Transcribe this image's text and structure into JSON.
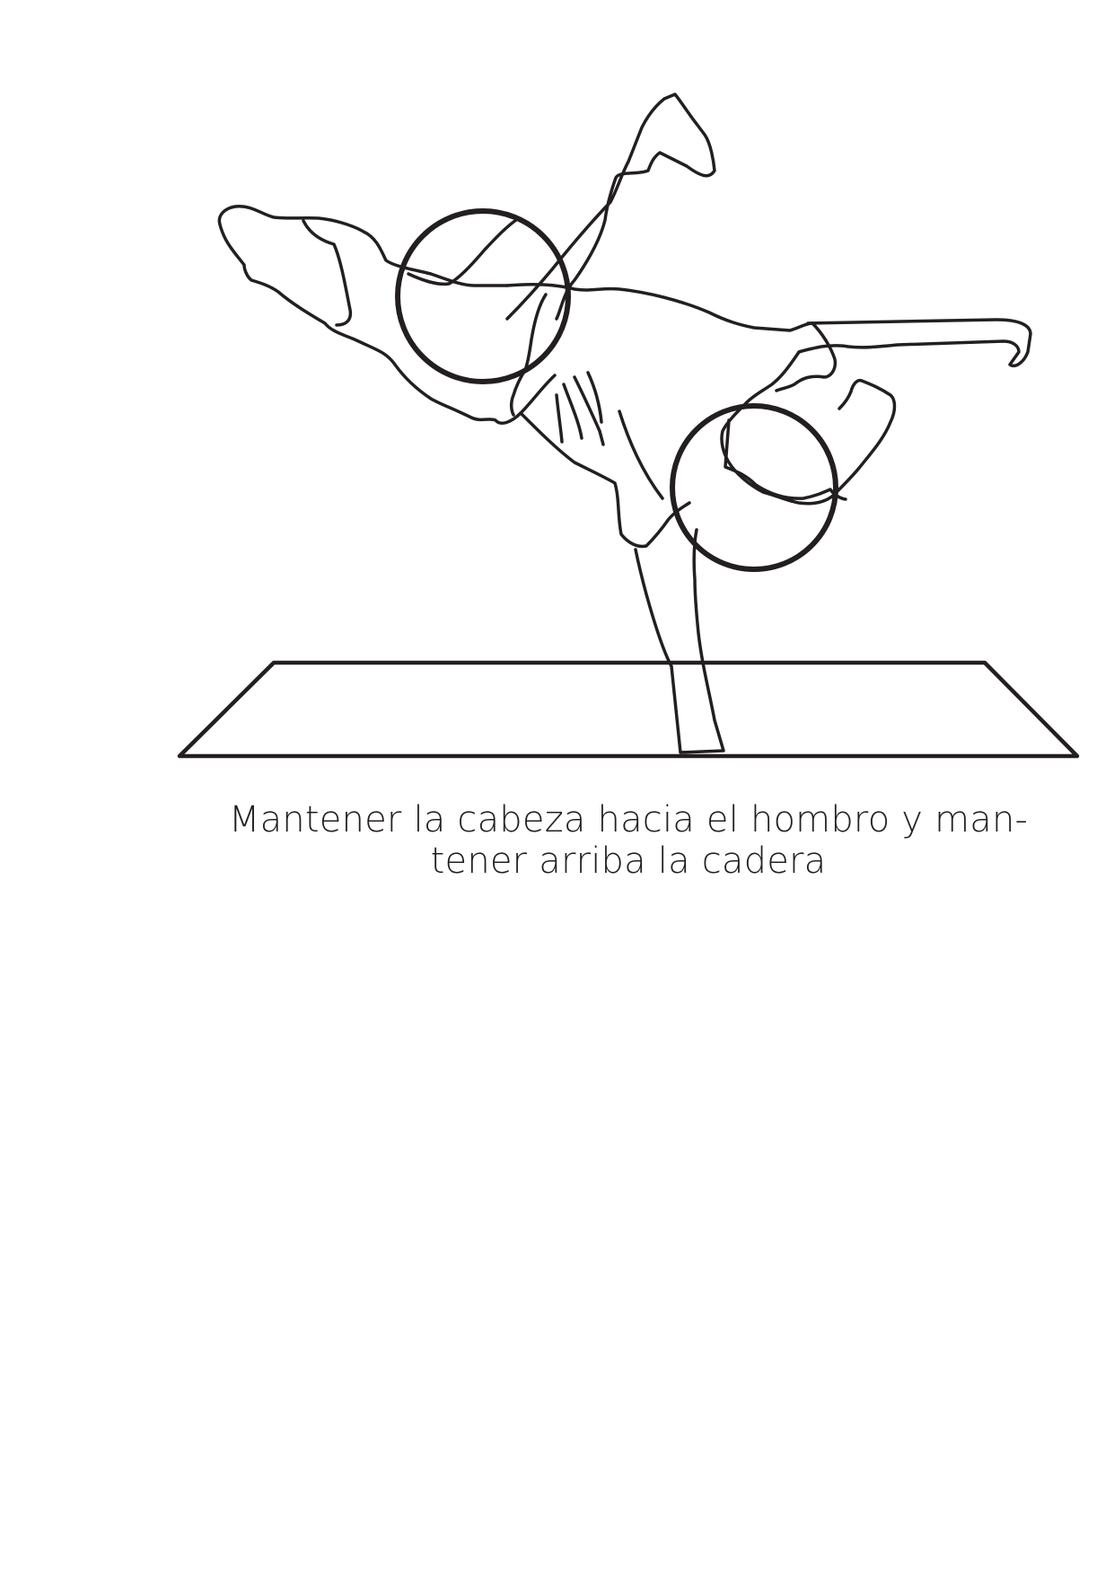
{
  "caption": {
    "line1": "Mantener la cabeza hacia el hombro y man-",
    "line2": "tener arriba la cadera"
  },
  "colors": {
    "ink": "#231f20",
    "background": "#ffffff"
  },
  "illustration": {
    "subject": "freeze-pose-figure",
    "focus_markers": [
      "head-focus-circle",
      "hip-focus-circle"
    ]
  }
}
